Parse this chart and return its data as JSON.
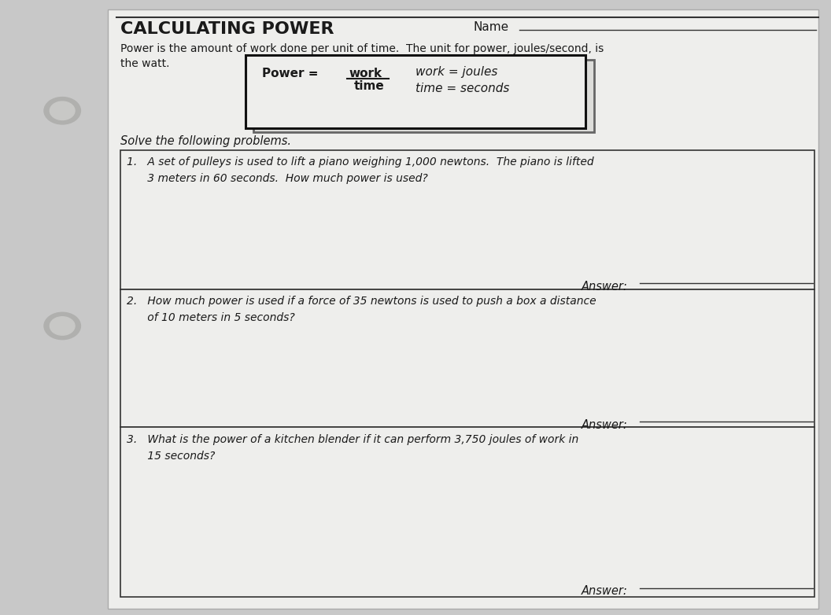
{
  "title": "CALCULATING POWER",
  "name_label": "Name",
  "intro_text": "Power is the amount of work done per unit of time.  The unit for power, joules/second, is\nthe watt.",
  "solve_text": "Solve the following problems.",
  "q1_text": "1.   A set of pulleys is used to lift a piano weighing 1,000 newtons.  The piano is lifted\n      3 meters in 60 seconds.  How much power is used?",
  "q2_text": "2.   How much power is used if a force of 35 newtons is used to push a box a distance\n      of 10 meters in 5 seconds?",
  "q3_text": "3.   What is the power of a kitchen blender if it can perform 3,750 joules of work in\n      15 seconds?",
  "answer_label": "Answer:",
  "bg_color": "#c8c8c8",
  "paper_color": "#eeeeec",
  "text_color": "#1a1a1a",
  "line_color": "#333333"
}
